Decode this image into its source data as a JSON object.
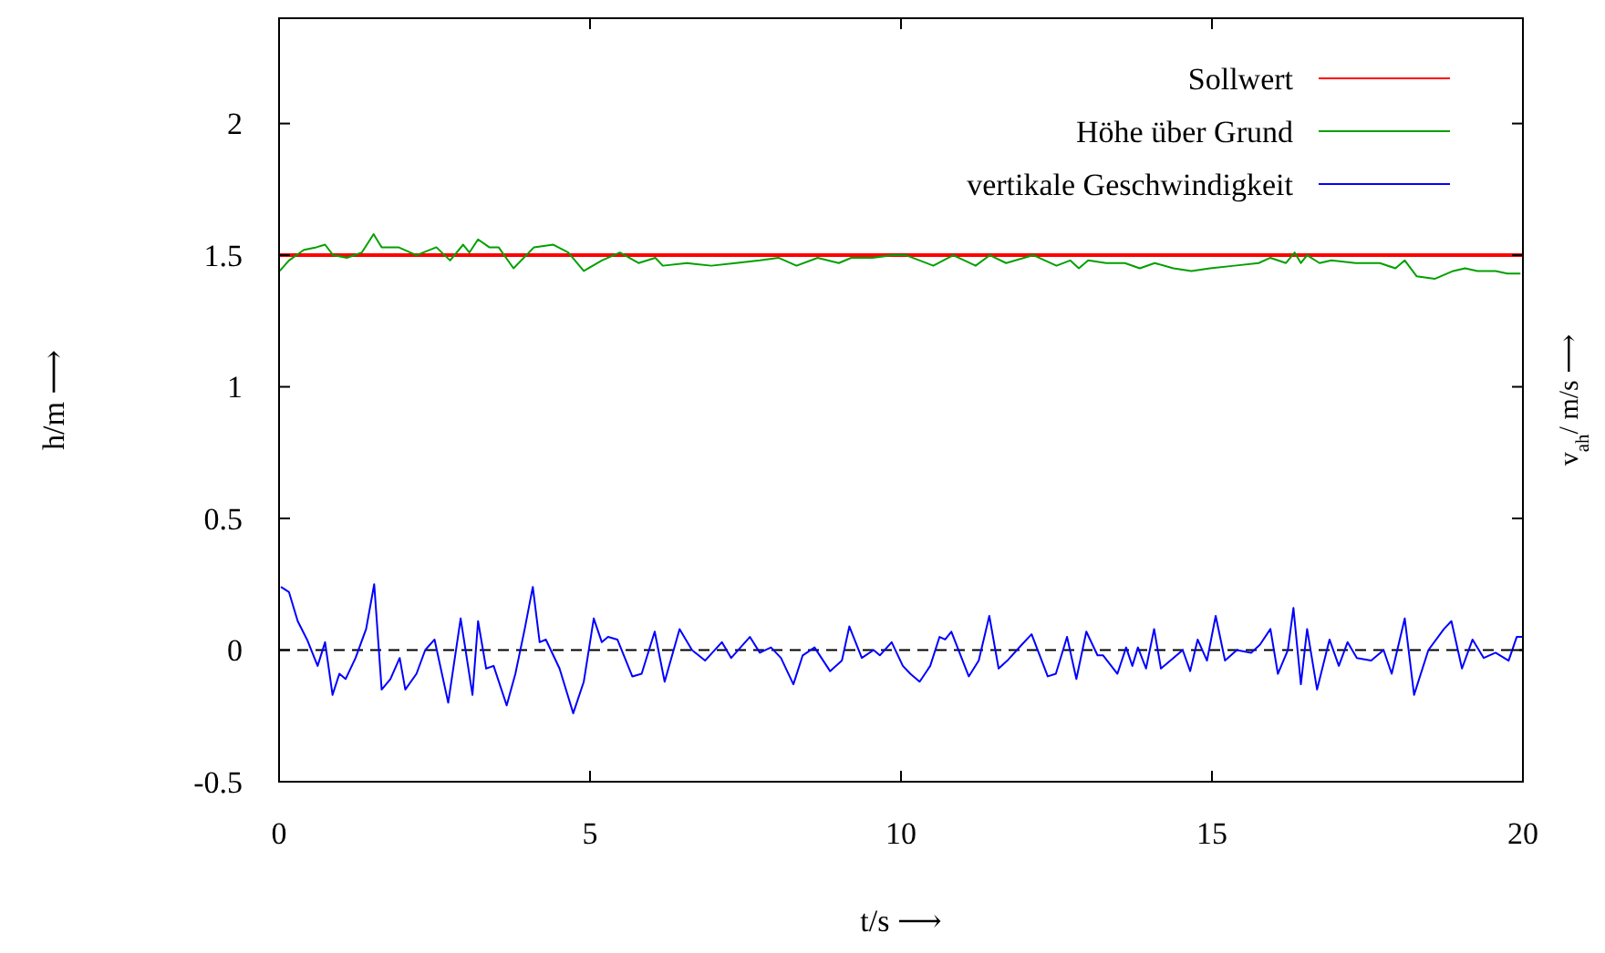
{
  "chart_data": {
    "type": "line",
    "xlabel": "t/s ⟶",
    "ylabel": "h/m ⟶",
    "y2label": "v$_{ah}$/ m/s ⟶",
    "xlim": [
      0,
      20
    ],
    "xticks": [
      0,
      5,
      10,
      15,
      20
    ],
    "ylim": [
      -0.5,
      2.4
    ],
    "yticks": [
      -0.5,
      0,
      0.5,
      1,
      1.5,
      2
    ],
    "legend": "top right",
    "grid": false,
    "marker": "none",
    "line_style": "solid",
    "ref_lines": [
      {
        "axis": "y",
        "value": 0,
        "color": "#000000",
        "line_style": "dashed"
      }
    ],
    "series": [
      {
        "name": "Sollwert",
        "color": "#ff0000",
        "x": [
          0,
          20
        ],
        "values": [
          1.5,
          1.5
        ]
      },
      {
        "name": "Höhe über Grund",
        "color": "#00a000",
        "x": [
          0.01,
          0.16,
          0.4,
          0.6,
          0.74,
          0.87,
          1.09,
          1.33,
          1.52,
          1.65,
          1.92,
          2.21,
          2.53,
          2.75,
          2.96,
          3.06,
          3.2,
          3.38,
          3.53,
          3.77,
          4.1,
          4.41,
          4.65,
          4.9,
          5.19,
          5.48,
          5.78,
          6.05,
          6.17,
          6.56,
          6.95,
          7.34,
          7.73,
          8.03,
          8.32,
          8.66,
          9.0,
          9.2,
          9.54,
          9.88,
          10.08,
          10.52,
          10.84,
          11.2,
          11.43,
          11.69,
          12.13,
          12.5,
          12.72,
          12.86,
          13.01,
          13.3,
          13.6,
          13.84,
          14.08,
          14.38,
          14.67,
          14.97,
          15.36,
          15.75,
          15.94,
          16.19,
          16.33,
          16.43,
          16.53,
          16.73,
          16.92,
          17.31,
          17.7,
          17.95,
          18.1,
          18.29,
          18.58,
          18.88,
          19.07,
          19.27,
          19.56,
          19.75,
          19.85,
          19.96
        ],
        "values": [
          1.44,
          1.48,
          1.52,
          1.53,
          1.54,
          1.5,
          1.49,
          1.51,
          1.58,
          1.53,
          1.53,
          1.5,
          1.53,
          1.48,
          1.54,
          1.51,
          1.56,
          1.53,
          1.53,
          1.45,
          1.53,
          1.54,
          1.51,
          1.44,
          1.48,
          1.51,
          1.47,
          1.49,
          1.46,
          1.47,
          1.46,
          1.47,
          1.48,
          1.49,
          1.46,
          1.49,
          1.47,
          1.49,
          1.49,
          1.5,
          1.5,
          1.46,
          1.5,
          1.46,
          1.5,
          1.47,
          1.5,
          1.46,
          1.48,
          1.45,
          1.48,
          1.47,
          1.47,
          1.45,
          1.47,
          1.45,
          1.44,
          1.45,
          1.46,
          1.47,
          1.49,
          1.47,
          1.51,
          1.47,
          1.5,
          1.47,
          1.48,
          1.47,
          1.47,
          1.45,
          1.48,
          1.42,
          1.41,
          1.44,
          1.45,
          1.44,
          1.44,
          1.43,
          1.43,
          1.43
        ]
      },
      {
        "name": "vertikale Geschwindigkeit",
        "color": "#0000ff",
        "x": [
          0.03,
          0.16,
          0.3,
          0.45,
          0.62,
          0.74,
          0.86,
          0.97,
          1.07,
          1.23,
          1.4,
          1.53,
          1.65,
          1.79,
          1.94,
          2.03,
          2.21,
          2.35,
          2.5,
          2.72,
          2.92,
          3.11,
          3.2,
          3.33,
          3.45,
          3.66,
          3.8,
          3.95,
          4.08,
          4.19,
          4.29,
          4.51,
          4.73,
          4.9,
          5.06,
          5.19,
          5.29,
          5.44,
          5.68,
          5.83,
          6.04,
          6.2,
          6.44,
          6.64,
          6.85,
          7.12,
          7.27,
          7.57,
          7.73,
          7.91,
          8.07,
          8.27,
          8.42,
          8.61,
          8.86,
          9.05,
          9.17,
          9.37,
          9.56,
          9.66,
          9.85,
          10.03,
          10.15,
          10.3,
          10.47,
          10.62,
          10.71,
          10.81,
          11.09,
          11.25,
          11.42,
          11.57,
          11.71,
          11.94,
          12.1,
          12.36,
          12.49,
          12.67,
          12.82,
          12.98,
          13.16,
          13.25,
          13.48,
          13.62,
          13.72,
          13.81,
          13.94,
          14.07,
          14.18,
          14.38,
          14.53,
          14.65,
          14.77,
          14.92,
          15.06,
          15.21,
          15.4,
          15.63,
          15.77,
          15.94,
          16.06,
          16.22,
          16.31,
          16.43,
          16.53,
          16.69,
          16.89,
          17.04,
          17.18,
          17.33,
          17.56,
          17.76,
          17.89,
          18.1,
          18.25,
          18.48,
          18.73,
          18.85,
          19.02,
          19.19,
          19.37,
          19.56,
          19.77,
          19.9,
          20
        ],
        "values": [
          0.24,
          0.22,
          0.11,
          0.04,
          -0.06,
          0.03,
          -0.17,
          -0.09,
          -0.11,
          -0.03,
          0.08,
          0.25,
          -0.15,
          -0.11,
          -0.03,
          -0.15,
          -0.09,
          0,
          0.04,
          -0.2,
          0.12,
          -0.17,
          0.11,
          -0.07,
          -0.06,
          -0.21,
          -0.09,
          0.08,
          0.24,
          0.03,
          0.04,
          -0.07,
          -0.24,
          -0.12,
          0.12,
          0.03,
          0.05,
          0.04,
          -0.1,
          -0.09,
          0.07,
          -0.12,
          0.08,
          0,
          -0.04,
          0.03,
          -0.03,
          0.05,
          -0.01,
          0.01,
          -0.03,
          -0.13,
          -0.02,
          0.01,
          -0.08,
          -0.04,
          0.09,
          -0.03,
          0,
          -0.02,
          0.03,
          -0.06,
          -0.09,
          -0.12,
          -0.06,
          0.05,
          0.04,
          0.07,
          -0.1,
          -0.04,
          0.13,
          -0.07,
          -0.04,
          0.02,
          0.06,
          -0.1,
          -0.09,
          0.05,
          -0.11,
          0.07,
          -0.02,
          -0.02,
          -0.09,
          0.01,
          -0.06,
          0.01,
          -0.07,
          0.08,
          -0.07,
          -0.03,
          0,
          -0.08,
          0.04,
          -0.04,
          0.13,
          -0.04,
          0,
          -0.01,
          0.02,
          0.08,
          -0.09,
          0,
          0.16,
          -0.13,
          0.08,
          -0.15,
          0.04,
          -0.06,
          0.03,
          -0.03,
          -0.04,
          0,
          -0.09,
          0.12,
          -0.17,
          0,
          0.08,
          0.11,
          -0.07,
          0.04,
          -0.03,
          -0.01,
          -0.04,
          0.05,
          0.05
        ]
      }
    ]
  }
}
